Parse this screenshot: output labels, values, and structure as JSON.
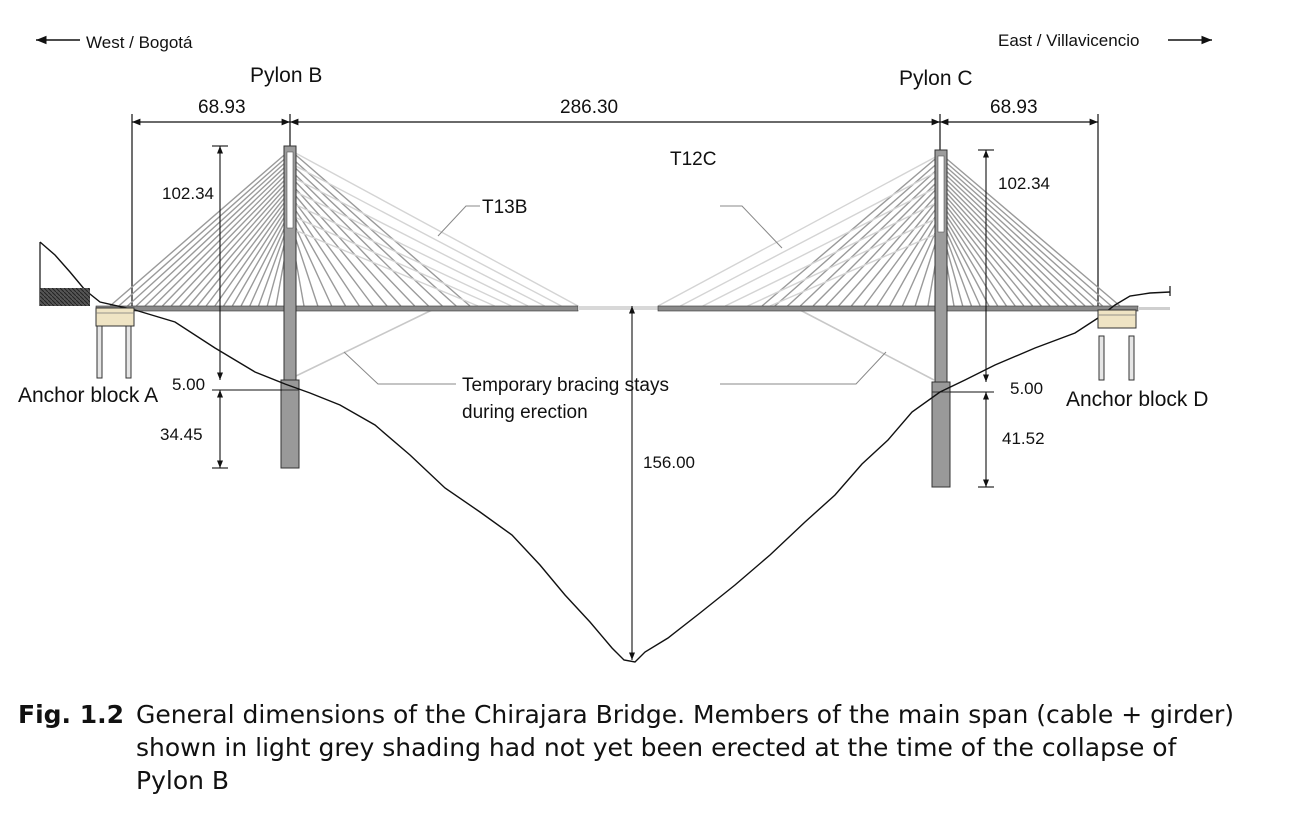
{
  "directions": {
    "west": "West / Bogotá",
    "east": "East / Villavicencio"
  },
  "pylons": {
    "b": "Pylon B",
    "c": "Pylon C"
  },
  "spans": {
    "west_side": "68.93",
    "main": "286.30",
    "east_side": "68.93"
  },
  "heights": {
    "pylon_b_above": "102.34",
    "pylon_b_gap": "5.00",
    "pylon_b_below": "34.45",
    "pylon_c_above": "102.34",
    "pylon_c_gap": "5.00",
    "pylon_c_below": "41.52",
    "valley_depth": "156.00"
  },
  "cables": {
    "t13b": "T13B",
    "t12c": "T12C"
  },
  "bracing": {
    "line1": "Temporary bracing stays",
    "line2": "during erection"
  },
  "anchors": {
    "a": "Anchor block A",
    "d": "Anchor block D"
  },
  "caption": {
    "label": "Fig. 1.2",
    "text": "General dimensions of the Chirajara Bridge. Members of the main span (cable + girder) shown in light grey shading had not yet been erected at the time of the collapse of Pylon B"
  },
  "colors": {
    "erected": "#9a9a9a",
    "not_erected": "#d4d4d4",
    "line": "#111111"
  }
}
